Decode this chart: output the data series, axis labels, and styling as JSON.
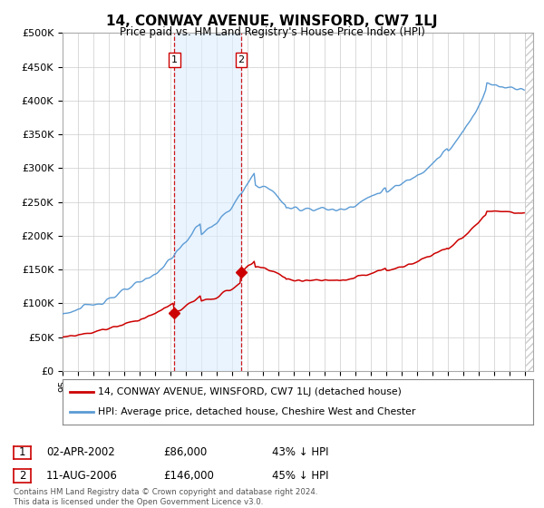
{
  "title": "14, CONWAY AVENUE, WINSFORD, CW7 1LJ",
  "subtitle": "Price paid vs. HM Land Registry's House Price Index (HPI)",
  "ylabel_ticks": [
    "£0",
    "£50K",
    "£100K",
    "£150K",
    "£200K",
    "£250K",
    "£300K",
    "£350K",
    "£400K",
    "£450K",
    "£500K"
  ],
  "ytick_vals": [
    0,
    50000,
    100000,
    150000,
    200000,
    250000,
    300000,
    350000,
    400000,
    450000,
    500000
  ],
  "ylim": [
    0,
    500000
  ],
  "xlim_start": 1995.0,
  "xlim_end": 2025.5,
  "hpi_color": "#5b9bd5",
  "price_color": "#cc0000",
  "shaded_color": "#ddeeff",
  "shaded_alpha": 0.6,
  "transaction1_date": 2002.25,
  "transaction1_price": 86000,
  "transaction2_date": 2006.58,
  "transaction2_price": 146000,
  "transaction1_label": "1",
  "transaction2_label": "2",
  "legend_line1": "14, CONWAY AVENUE, WINSFORD, CW7 1LJ (detached house)",
  "legend_line2": "HPI: Average price, detached house, Cheshire West and Chester",
  "table_row1": [
    "1",
    "02-APR-2002",
    "£86,000",
    "43% ↓ HPI"
  ],
  "table_row2": [
    "2",
    "11-AUG-2006",
    "£146,000",
    "45% ↓ HPI"
  ],
  "footer": "Contains HM Land Registry data © Crown copyright and database right 2024.\nThis data is licensed under the Open Government Licence v3.0.",
  "background_color": "#ffffff",
  "grid_color": "#cccccc",
  "hatch_color": "#cccccc"
}
